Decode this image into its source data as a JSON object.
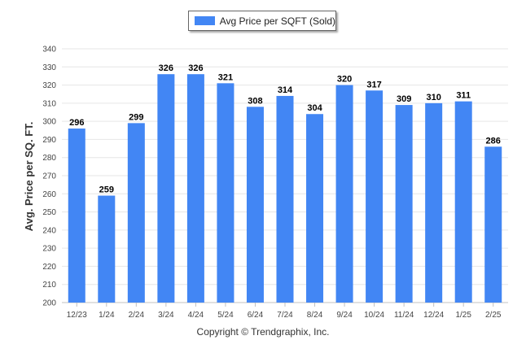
{
  "chart_data": {
    "type": "bar",
    "categories": [
      "12/23",
      "1/24",
      "2/24",
      "3/24",
      "4/24",
      "5/24",
      "6/24",
      "7/24",
      "8/24",
      "9/24",
      "10/24",
      "11/24",
      "12/24",
      "1/25",
      "2/25"
    ],
    "series": [
      {
        "name": "Avg Price per SQFT (Sold)",
        "values": [
          296,
          259,
          299,
          326,
          326,
          321,
          308,
          314,
          304,
          320,
          317,
          309,
          310,
          311,
          286
        ]
      }
    ],
    "ylabel": "Avg. Price per SQ. FT.",
    "ylim": [
      200,
      340
    ],
    "yticks": [
      200,
      210,
      220,
      230,
      240,
      250,
      260,
      270,
      280,
      290,
      300,
      310,
      320,
      330,
      340
    ],
    "grid": true,
    "legend_position": "top-center",
    "data_labels": true,
    "bar_color": "#4286f4"
  },
  "footer": {
    "copyright": "Copyright © Trendgraphix, Inc."
  }
}
